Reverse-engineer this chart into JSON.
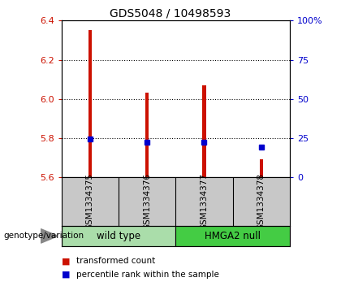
{
  "title": "GDS5048 / 10498593",
  "samples": [
    "GSM1334375",
    "GSM1334376",
    "GSM1334377",
    "GSM1334378"
  ],
  "bar_values": [
    6.35,
    6.03,
    6.07,
    5.69
  ],
  "bar_base": 5.6,
  "percentile_values": [
    5.795,
    5.778,
    5.778,
    5.755
  ],
  "ylim": [
    5.6,
    6.4
  ],
  "y2lim": [
    0,
    100
  ],
  "yticks": [
    5.6,
    5.8,
    6.0,
    6.2,
    6.4
  ],
  "y2ticks": [
    0,
    25,
    50,
    75,
    100
  ],
  "y2ticklabels": [
    "0",
    "25",
    "50",
    "75",
    "100%"
  ],
  "bar_color": "#cc1100",
  "percentile_color": "#0000cc",
  "genotype_label": "genotype/variation",
  "group1_label": "wild type",
  "group1_color": "#aaddaa",
  "group2_label": "HMGA2 null",
  "group2_color": "#44cc44",
  "legend_label1": "transformed count",
  "legend_label2": "percentile rank within the sample",
  "background_color": "#ffffff",
  "sample_area_color": "#c8c8c8",
  "bar_width": 0.06,
  "grid_yticks": [
    5.8,
    6.0,
    6.2
  ]
}
